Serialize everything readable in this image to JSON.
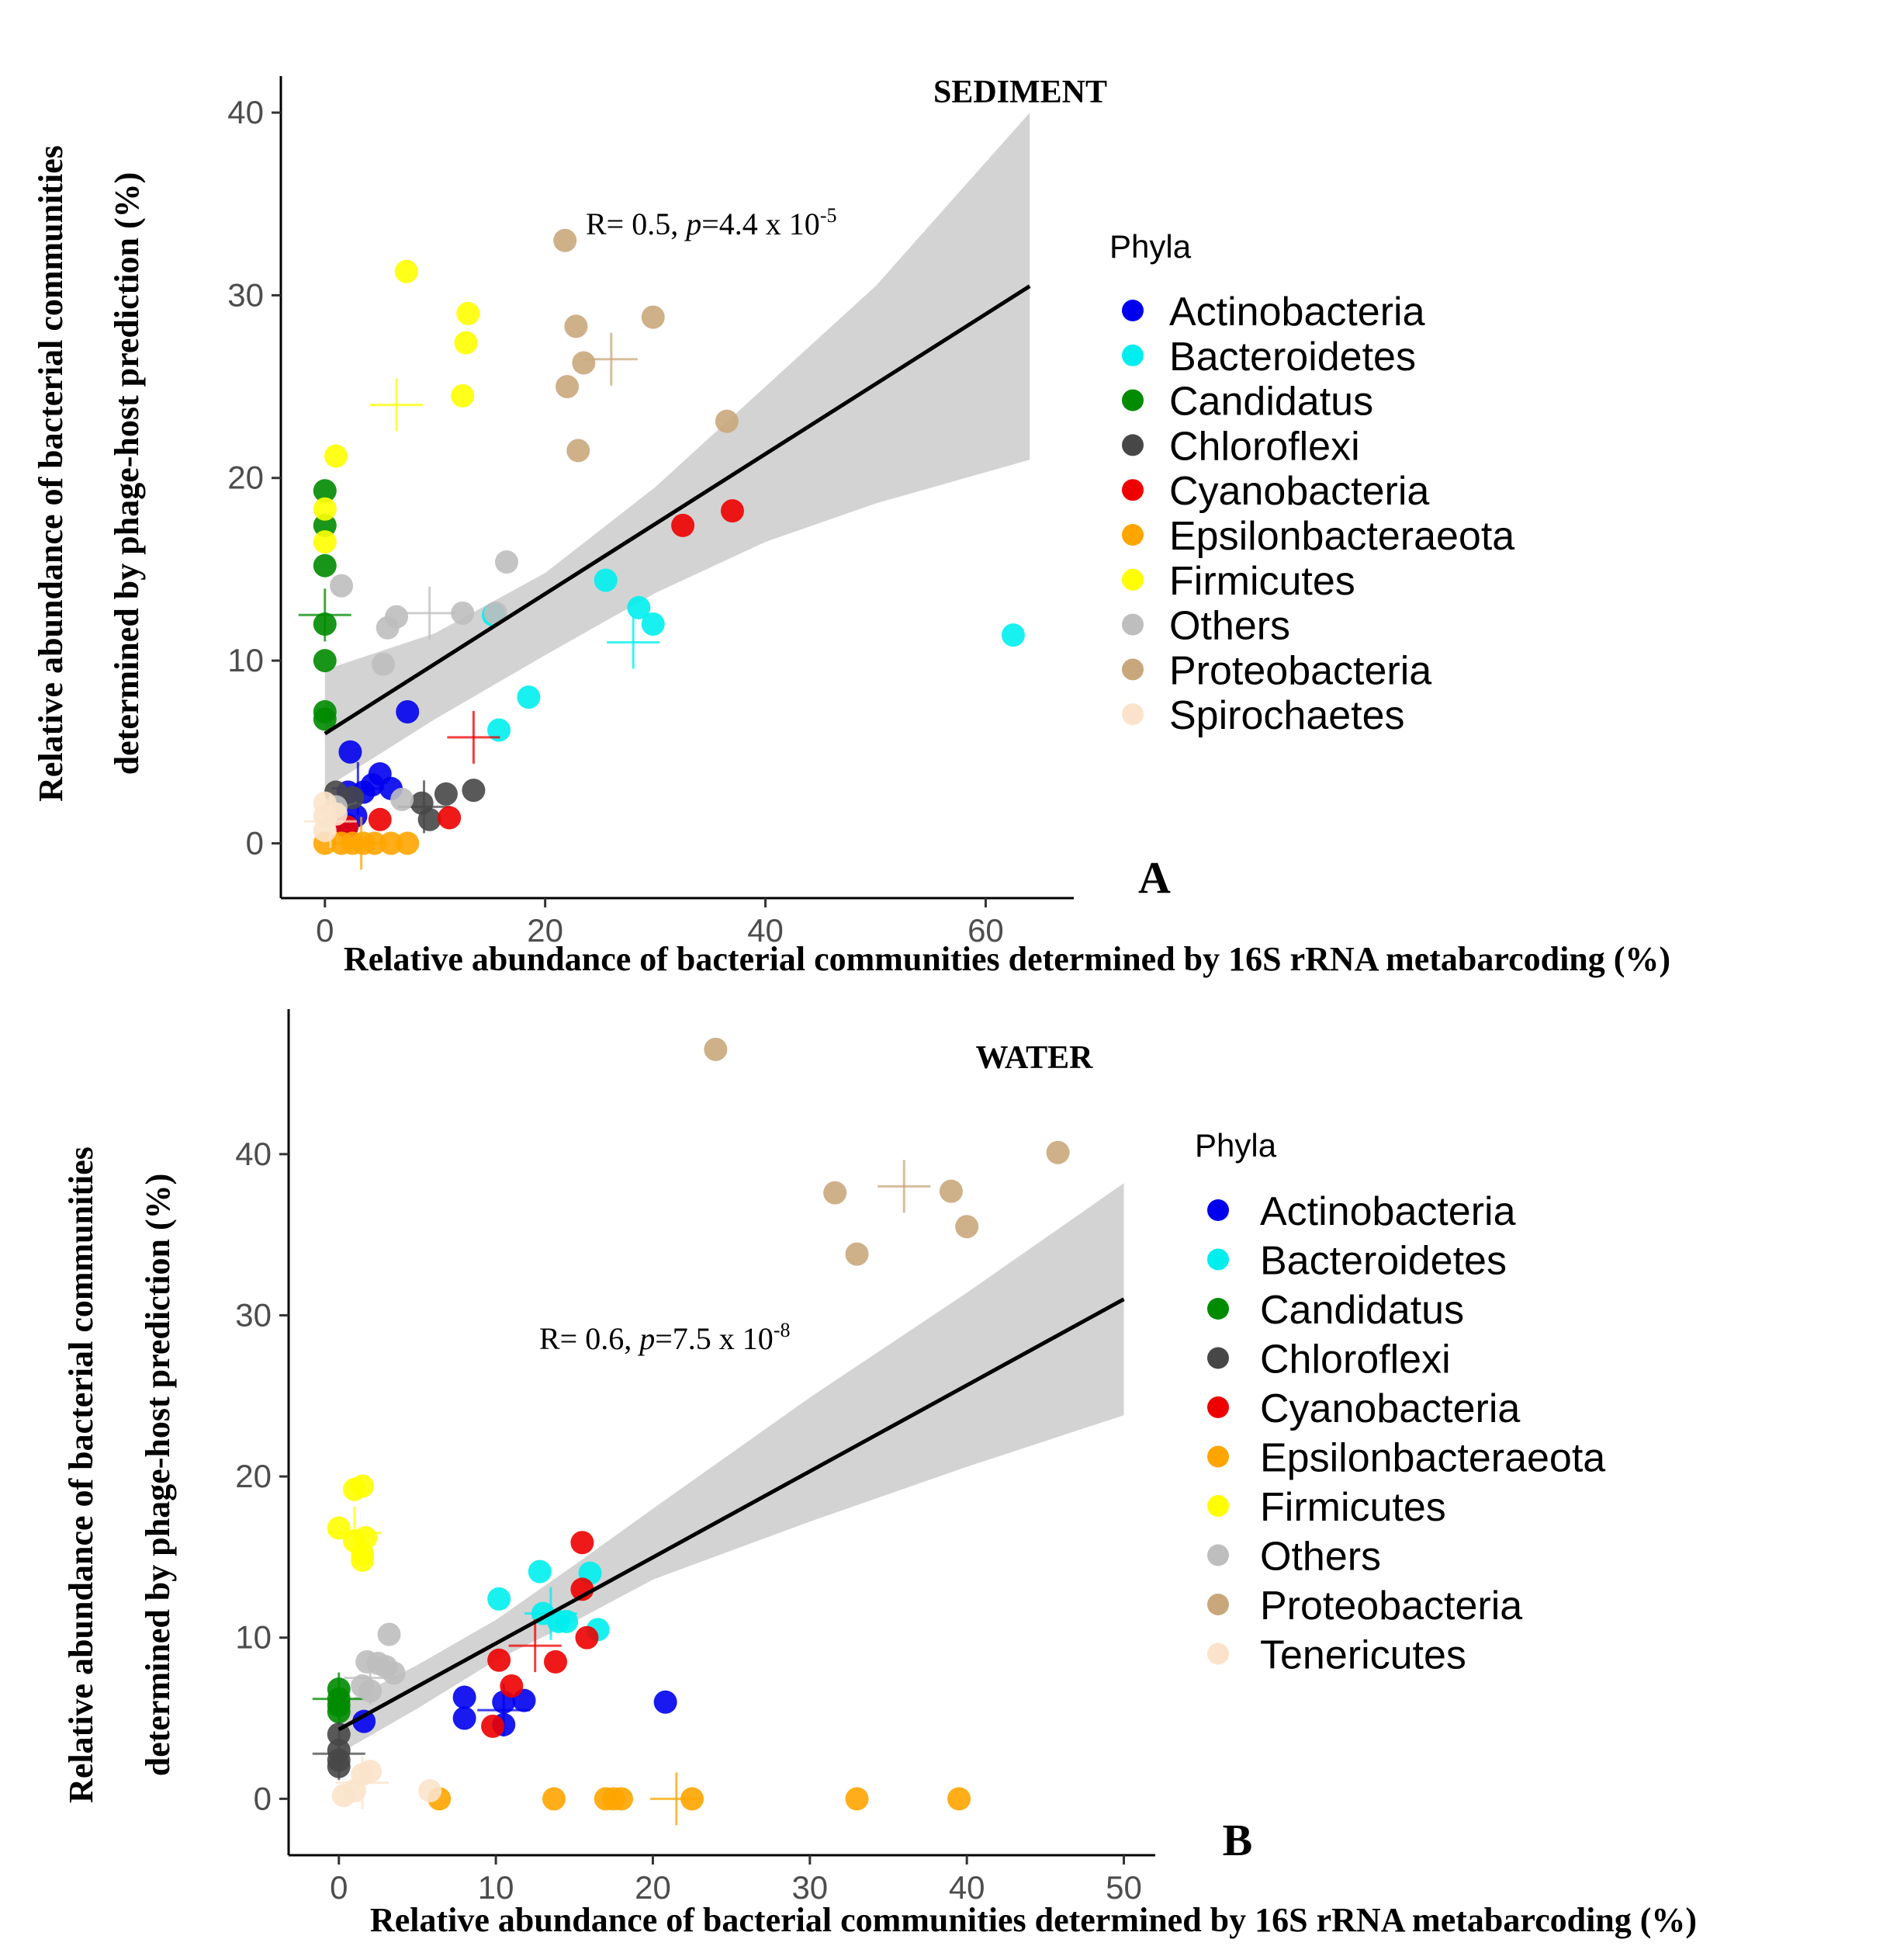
{
  "chart_data": [
    {
      "type": "scatter",
      "panel_label": "A",
      "title": "SEDIMENT",
      "xlabel": "Relative abundance of bacterial communities determined by 16S rRNA metabarcoding (%)",
      "ylabel_line1": "Relative abundance of bacterial communities",
      "ylabel_line2": "determined by phage-host prediction (%)",
      "xlim": [
        -4,
        68
      ],
      "ylim": [
        -3,
        42
      ],
      "xticks": [
        0,
        20,
        40,
        60
      ],
      "yticks": [
        0,
        10,
        20,
        30,
        40
      ],
      "grid": false,
      "annotation": {
        "prefix": "R= 0.5, ",
        "p": "p",
        "mid": "=4.4 x 10",
        "exp": "-5",
        "x": 23.5,
        "y": 33
      },
      "regression": {
        "x0": 0,
        "y0": 6,
        "x1": 64,
        "y1": 30.5
      },
      "confidence_band": {
        "upper": [
          [
            0,
            9.5
          ],
          [
            10,
            11.5
          ],
          [
            20,
            14.8
          ],
          [
            30,
            19.5
          ],
          [
            40,
            25
          ],
          [
            50,
            30.5
          ],
          [
            64,
            40
          ]
        ],
        "lower": [
          [
            0,
            3
          ],
          [
            10,
            6.8
          ],
          [
            20,
            10.3
          ],
          [
            30,
            13.7
          ],
          [
            40,
            16.5
          ],
          [
            50,
            18.6
          ],
          [
            64,
            21
          ]
        ]
      },
      "legend": {
        "title": "Phyla",
        "entries": [
          {
            "label": "Actinobacteria",
            "color": "#0000ee"
          },
          {
            "label": "Bacteroidetes",
            "color": "#00eeee"
          },
          {
            "label": "Candidatus",
            "color": "#008b00"
          },
          {
            "label": "Chloroflexi",
            "color": "#474747"
          },
          {
            "label": "Cyanobacteria",
            "color": "#ee0000"
          },
          {
            "label": "Epsilonbacteraeota",
            "color": "#ffa500"
          },
          {
            "label": "Firmicutes",
            "color": "#ffff00"
          },
          {
            "label": "Others",
            "color": "#bebebe"
          },
          {
            "label": "Proteobacteria",
            "color": "#c9a77c"
          },
          {
            "label": "Spirochaetes",
            "color": "#fbe3cb"
          }
        ]
      },
      "series": [
        {
          "name": "Actinobacteria",
          "centroid": [
            3,
            3
          ],
          "points": [
            [
              2.3,
              5
            ],
            [
              2.1,
              2.8
            ],
            [
              3.5,
              2.8
            ],
            [
              5,
              3.8
            ],
            [
              6,
              3
            ],
            [
              4.3,
              3.2
            ],
            [
              7.5,
              7.2
            ],
            [
              2.8,
              1.5
            ],
            [
              2,
              1
            ]
          ]
        },
        {
          "name": "Bacteroidetes",
          "centroid": [
            28,
            11
          ],
          "points": [
            [
              15.3,
              12.5
            ],
            [
              15.8,
              6.2
            ],
            [
              18.5,
              8
            ],
            [
              25.5,
              14.4
            ],
            [
              28.5,
              12.9
            ],
            [
              29.8,
              12
            ],
            [
              62.5,
              11.4
            ]
          ]
        },
        {
          "name": "Candidatus",
          "centroid": [
            0,
            12.5
          ],
          "points": [
            [
              0,
              19.3
            ],
            [
              0,
              17.4
            ],
            [
              0,
              15.2
            ],
            [
              0,
              12
            ],
            [
              0,
              10
            ],
            [
              0,
              7.2
            ],
            [
              0,
              6.8
            ]
          ]
        },
        {
          "name": "Chloroflexi",
          "centroid": [
            9,
            2
          ],
          "points": [
            [
              1,
              2.8
            ],
            [
              2.5,
              2.5
            ],
            [
              8.8,
              2.2
            ],
            [
              9.5,
              1.3
            ],
            [
              11,
              2.7
            ],
            [
              13.5,
              2.9
            ]
          ]
        },
        {
          "name": "Cyanobacteria",
          "centroid": [
            13.5,
            5.8
          ],
          "points": [
            [
              32.5,
              17.4
            ],
            [
              37,
              18.2
            ],
            [
              11.3,
              1.4
            ],
            [
              5,
              1.3
            ],
            [
              2,
              0.9
            ]
          ]
        },
        {
          "name": "Epsilonbacteraeota",
          "centroid": [
            3.3,
            0
          ],
          "points": [
            [
              0,
              0
            ],
            [
              1.5,
              0
            ],
            [
              2.5,
              0
            ],
            [
              3.5,
              0
            ],
            [
              4.5,
              0
            ],
            [
              6,
              0
            ],
            [
              7.5,
              0
            ]
          ]
        },
        {
          "name": "Firmicutes",
          "centroid": [
            6.5,
            24
          ],
          "points": [
            [
              7.4,
              31.3
            ],
            [
              13,
              29
            ],
            [
              12.8,
              27.4
            ],
            [
              12.5,
              24.5
            ],
            [
              1,
              21.2
            ],
            [
              0,
              18.3
            ],
            [
              0,
              16.5
            ]
          ]
        },
        {
          "name": "Others",
          "centroid": [
            9.5,
            12.6
          ],
          "points": [
            [
              1.5,
              14.1
            ],
            [
              16.5,
              15.4
            ],
            [
              5.7,
              11.8
            ],
            [
              6.5,
              12.4
            ],
            [
              12.5,
              12.6
            ],
            [
              15.5,
              12.6
            ],
            [
              5.3,
              9.8
            ],
            [
              7,
              2.4
            ],
            [
              1,
              2
            ]
          ]
        },
        {
          "name": "Proteobacteria",
          "centroid": [
            26,
            26.5
          ],
          "points": [
            [
              21.8,
              33
            ],
            [
              22.8,
              28.3
            ],
            [
              23.5,
              26.3
            ],
            [
              22,
              25
            ],
            [
              23,
              21.5
            ],
            [
              29.8,
              28.8
            ],
            [
              36.5,
              23.1
            ]
          ]
        },
        {
          "name": "Spirochaetes",
          "centroid": [
            0.5,
            1.2
          ],
          "points": [
            [
              0,
              2.2
            ],
            [
              0,
              1.5
            ],
            [
              0,
              0.7
            ],
            [
              1,
              1.6
            ]
          ]
        }
      ]
    },
    {
      "type": "scatter",
      "panel_label": "B",
      "title": "WATER",
      "xlabel": "Relative abundance of bacterial communities determined by 16S rRNA metabarcoding (%)",
      "ylabel_line1": "Relative abundance of bacterial communities",
      "ylabel_line2": "determined by phage-host prediction (%)",
      "xlim": [
        -3.2,
        52
      ],
      "ylim": [
        -3.5,
        49
      ],
      "xticks": [
        0,
        10,
        20,
        30,
        40,
        50
      ],
      "yticks": [
        0,
        10,
        20,
        30,
        40
      ],
      "grid": false,
      "annotation": {
        "prefix": "R= 0.6, ",
        "p": "p",
        "mid": "=7.5 x 10",
        "exp": "-8",
        "x": 14,
        "y": 28
      },
      "regression": {
        "x0": 0,
        "y0": 4.3,
        "x1": 50,
        "y1": 31
      },
      "confidence_band": {
        "upper": [
          [
            0,
            5.8
          ],
          [
            5,
            8.3
          ],
          [
            10,
            11.1
          ],
          [
            15,
            14.5
          ],
          [
            20,
            18
          ],
          [
            30,
            24.9
          ],
          [
            40,
            31.4
          ],
          [
            50,
            38.2
          ]
        ],
        "lower": [
          [
            0,
            2.8
          ],
          [
            5,
            5.6
          ],
          [
            10,
            8.6
          ],
          [
            15,
            11
          ],
          [
            20,
            13.6
          ],
          [
            30,
            17.2
          ],
          [
            40,
            20.6
          ],
          [
            50,
            23.8
          ]
        ]
      },
      "legend": {
        "title": "Phyla",
        "entries": [
          {
            "label": "Actinobacteria",
            "color": "#0000ee"
          },
          {
            "label": "Bacteroidetes",
            "color": "#00eeee"
          },
          {
            "label": "Candidatus",
            "color": "#008b00"
          },
          {
            "label": "Chloroflexi",
            "color": "#474747"
          },
          {
            "label": "Cyanobacteria",
            "color": "#ee0000"
          },
          {
            "label": "Epsilonbacteraeota",
            "color": "#ffa500"
          },
          {
            "label": "Firmicutes",
            "color": "#ffff00"
          },
          {
            "label": "Others",
            "color": "#bebebe"
          },
          {
            "label": "Proteobacteria",
            "color": "#c9a77c"
          },
          {
            "label": "Tenericutes",
            "color": "#fbe3cb"
          }
        ]
      },
      "series": [
        {
          "name": "Actinobacteria",
          "centroid": [
            10.5,
            5.5
          ],
          "points": [
            [
              1.6,
              4.8
            ],
            [
              8,
              6.3
            ],
            [
              8,
              5
            ],
            [
              10.5,
              6
            ],
            [
              10.5,
              4.6
            ],
            [
              11.8,
              6.1
            ],
            [
              20.8,
              6
            ]
          ]
        },
        {
          "name": "Bacteroidetes",
          "centroid": [
            13.5,
            11.5
          ],
          "points": [
            [
              10.2,
              12.4
            ],
            [
              12.8,
              14.1
            ],
            [
              13,
              11.5
            ],
            [
              14,
              11
            ],
            [
              14.5,
              11
            ],
            [
              16,
              14
            ],
            [
              16.5,
              10.5
            ]
          ]
        },
        {
          "name": "Candidatus",
          "centroid": [
            0,
            6.2
          ],
          "points": [
            [
              0,
              6.8
            ],
            [
              0,
              6.2
            ],
            [
              0,
              5.8
            ],
            [
              0,
              5.4
            ]
          ]
        },
        {
          "name": "Chloroflexi",
          "centroid": [
            0,
            2.8
          ],
          "points": [
            [
              0,
              4
            ],
            [
              0,
              3
            ],
            [
              0,
              2.4
            ],
            [
              0,
              2
            ]
          ]
        },
        {
          "name": "Cyanobacteria",
          "centroid": [
            12.5,
            9.5
          ],
          "points": [
            [
              15.5,
              15.9
            ],
            [
              15.5,
              13
            ],
            [
              10.2,
              8.6
            ],
            [
              15.8,
              10
            ],
            [
              13.8,
              8.5
            ],
            [
              11,
              7
            ],
            [
              9.8,
              4.5
            ]
          ]
        },
        {
          "name": "Epsilonbacteraeota",
          "centroid": [
            21.5,
            0
          ],
          "points": [
            [
              6.4,
              0
            ],
            [
              13.7,
              0
            ],
            [
              17,
              0
            ],
            [
              17.5,
              0
            ],
            [
              18,
              0
            ],
            [
              22.5,
              0
            ],
            [
              33,
              0
            ],
            [
              39.5,
              0
            ]
          ]
        },
        {
          "name": "Firmicutes",
          "centroid": [
            1,
            16.5
          ],
          "points": [
            [
              1,
              19.2
            ],
            [
              1.5,
              19.4
            ],
            [
              0,
              16.8
            ],
            [
              1,
              16
            ],
            [
              1.5,
              15.2
            ],
            [
              1.7,
              16.2
            ],
            [
              1.5,
              14.8
            ]
          ]
        },
        {
          "name": "Others",
          "centroid": [
            2,
            7.5
          ],
          "points": [
            [
              3.2,
              10.2
            ],
            [
              1.8,
              8.5
            ],
            [
              2.5,
              8.4
            ],
            [
              3,
              8.2
            ],
            [
              3.5,
              7.8
            ],
            [
              1.5,
              7
            ],
            [
              2,
              6.7
            ]
          ]
        },
        {
          "name": "Proteobacteria",
          "centroid": [
            36,
            38
          ],
          "points": [
            [
              24,
              46.5
            ],
            [
              31.6,
              37.6
            ],
            [
              39,
              37.7
            ],
            [
              40,
              35.5
            ],
            [
              33,
              33.8
            ],
            [
              45.8,
              40.1
            ]
          ]
        },
        {
          "name": "Tenericutes",
          "centroid": [
            1.5,
            1
          ],
          "points": [
            [
              5.8,
              0.5
            ],
            [
              1.5,
              1.5
            ],
            [
              2,
              1.7
            ],
            [
              0.3,
              0.2
            ],
            [
              1,
              0.5
            ]
          ]
        }
      ]
    }
  ]
}
